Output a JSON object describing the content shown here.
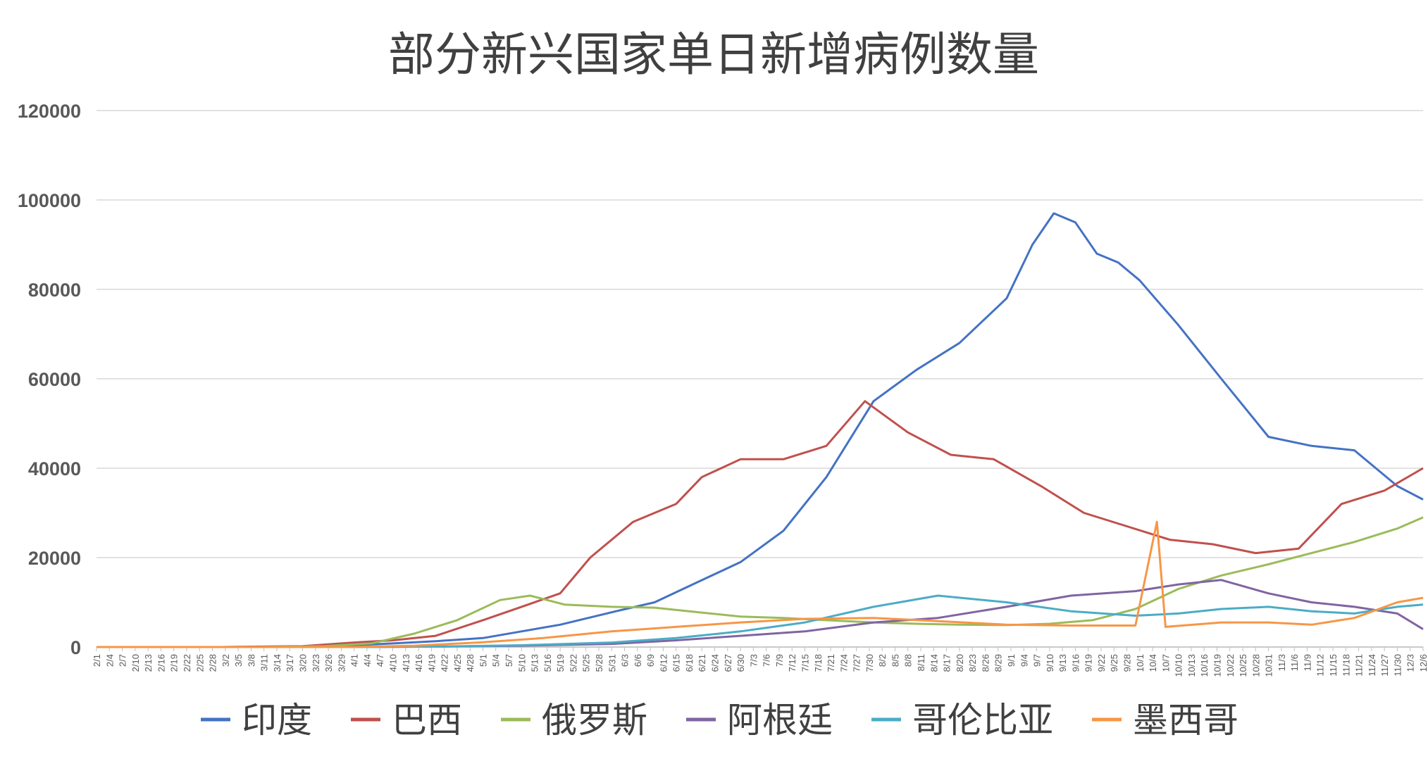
{
  "chart_data": {
    "type": "line",
    "title": "部分新兴国家单日新增病例数量",
    "xlabel": "",
    "ylabel": "",
    "ylim": [
      0,
      120000
    ],
    "yticks": [
      0,
      20000,
      40000,
      60000,
      80000,
      100000,
      120000
    ],
    "grid": true,
    "legend_position": "bottom",
    "x_start": "2/1",
    "x_end": "12/6",
    "x_tick_labels": [
      "2/1",
      "2/4",
      "2/7",
      "2/10",
      "2/13",
      "2/16",
      "2/19",
      "2/22",
      "2/25",
      "2/28",
      "3/2",
      "3/5",
      "3/8",
      "3/11",
      "3/14",
      "3/17",
      "3/20",
      "3/23",
      "3/26",
      "3/29",
      "4/1",
      "4/4",
      "4/7",
      "4/10",
      "4/13",
      "4/16",
      "4/19",
      "4/22",
      "4/25",
      "4/28",
      "5/1",
      "5/4",
      "5/7",
      "5/10",
      "5/13",
      "5/16",
      "5/19",
      "5/22",
      "5/25",
      "5/28",
      "5/31",
      "6/3",
      "6/6",
      "6/9",
      "6/12",
      "6/15",
      "6/18",
      "6/21",
      "6/24",
      "6/27",
      "6/30",
      "7/3",
      "7/6",
      "7/9",
      "7/12",
      "7/15",
      "7/18",
      "7/21",
      "7/24",
      "7/27",
      "7/30",
      "8/2",
      "8/5",
      "8/8",
      "8/11",
      "8/14",
      "8/17",
      "8/20",
      "8/23",
      "8/26",
      "8/29",
      "9/1",
      "9/4",
      "9/7",
      "9/10",
      "9/13",
      "9/16",
      "9/19",
      "9/22",
      "9/25",
      "9/28",
      "10/1",
      "10/4",
      "10/7",
      "10/10",
      "10/13",
      "10/16",
      "10/19",
      "10/22",
      "10/25",
      "10/28",
      "10/31",
      "11/3",
      "11/6",
      "11/9",
      "11/12",
      "11/15",
      "11/18",
      "11/21",
      "11/24",
      "11/27",
      "11/30",
      "12/3",
      "12/6"
    ],
    "series": [
      {
        "name": "印度",
        "color": "#4472C4",
        "points": [
          [
            "2/1",
            0
          ],
          [
            "3/1",
            0
          ],
          [
            "3/20",
            100
          ],
          [
            "4/1",
            400
          ],
          [
            "4/10",
            800
          ],
          [
            "4/20",
            1300
          ],
          [
            "5/1",
            2000
          ],
          [
            "5/10",
            3500
          ],
          [
            "5/19",
            5000
          ],
          [
            "6/1",
            8000
          ],
          [
            "6/10",
            10000
          ],
          [
            "6/20",
            14500
          ],
          [
            "6/30",
            19000
          ],
          [
            "7/10",
            26000
          ],
          [
            "7/20",
            38000
          ],
          [
            "7/31",
            55000
          ],
          [
            "8/10",
            62000
          ],
          [
            "8/20",
            68000
          ],
          [
            "8/31",
            78000
          ],
          [
            "9/6",
            90000
          ],
          [
            "9/11",
            97000
          ],
          [
            "9/16",
            95000
          ],
          [
            "9/21",
            88000
          ],
          [
            "9/26",
            86000
          ],
          [
            "10/1",
            82000
          ],
          [
            "10/10",
            72000
          ],
          [
            "10/20",
            60000
          ],
          [
            "10/31",
            47000
          ],
          [
            "11/10",
            45000
          ],
          [
            "11/20",
            44000
          ],
          [
            "11/30",
            36000
          ],
          [
            "12/6",
            33000
          ]
        ]
      },
      {
        "name": "巴西",
        "color": "#C0504D",
        "points": [
          [
            "2/1",
            0
          ],
          [
            "3/1",
            0
          ],
          [
            "3/20",
            200
          ],
          [
            "4/1",
            1000
          ],
          [
            "4/10",
            1500
          ],
          [
            "4/20",
            2500
          ],
          [
            "5/1",
            6000
          ],
          [
            "5/10",
            9000
          ],
          [
            "5/19",
            12000
          ],
          [
            "5/26",
            20000
          ],
          [
            "6/5",
            28000
          ],
          [
            "6/15",
            32000
          ],
          [
            "6/21",
            38000
          ],
          [
            "6/30",
            42000
          ],
          [
            "7/10",
            42000
          ],
          [
            "7/20",
            45000
          ],
          [
            "7/29",
            55000
          ],
          [
            "8/8",
            48000
          ],
          [
            "8/18",
            43000
          ],
          [
            "8/28",
            42000
          ],
          [
            "9/8",
            36000
          ],
          [
            "9/18",
            30000
          ],
          [
            "9/28",
            27000
          ],
          [
            "10/8",
            24000
          ],
          [
            "10/18",
            23000
          ],
          [
            "10/28",
            21000
          ],
          [
            "11/7",
            22000
          ],
          [
            "11/17",
            32000
          ],
          [
            "11/27",
            35000
          ],
          [
            "12/6",
            40000
          ]
        ]
      },
      {
        "name": "俄罗斯",
        "color": "#9BBB59",
        "points": [
          [
            "2/1",
            0
          ],
          [
            "3/10",
            0
          ],
          [
            "3/25",
            200
          ],
          [
            "4/5",
            800
          ],
          [
            "4/15",
            3000
          ],
          [
            "4/25",
            6000
          ],
          [
            "5/5",
            10500
          ],
          [
            "5/12",
            11500
          ],
          [
            "5/20",
            9500
          ],
          [
            "5/31",
            9000
          ],
          [
            "6/10",
            8800
          ],
          [
            "6/20",
            7800
          ],
          [
            "6/30",
            6800
          ],
          [
            "7/10",
            6500
          ],
          [
            "7/20",
            6000
          ],
          [
            "7/31",
            5500
          ],
          [
            "8/10",
            5200
          ],
          [
            "8/20",
            5000
          ],
          [
            "8/31",
            4900
          ],
          [
            "9/10",
            5200
          ],
          [
            "9/20",
            6000
          ],
          [
            "9/30",
            8500
          ],
          [
            "10/10",
            13000
          ],
          [
            "10/20",
            16000
          ],
          [
            "10/31",
            18500
          ],
          [
            "11/10",
            21000
          ],
          [
            "11/20",
            23500
          ],
          [
            "11/30",
            26500
          ],
          [
            "12/6",
            29000
          ]
        ]
      },
      {
        "name": "阿根廷",
        "color": "#8064A2",
        "points": [
          [
            "2/1",
            0
          ],
          [
            "4/1",
            0
          ],
          [
            "4/20",
            100
          ],
          [
            "5/10",
            300
          ],
          [
            "5/31",
            700
          ],
          [
            "6/15",
            1500
          ],
          [
            "6/30",
            2500
          ],
          [
            "7/15",
            3500
          ],
          [
            "7/31",
            5500
          ],
          [
            "8/15",
            6500
          ],
          [
            "8/31",
            9000
          ],
          [
            "9/15",
            11500
          ],
          [
            "9/30",
            12500
          ],
          [
            "10/10",
            14000
          ],
          [
            "10/20",
            15000
          ],
          [
            "10/31",
            12000
          ],
          [
            "11/10",
            10000
          ],
          [
            "11/20",
            9000
          ],
          [
            "11/30",
            7500
          ],
          [
            "12/6",
            4000
          ]
        ]
      },
      {
        "name": "哥伦比亚",
        "color": "#4BACC6",
        "points": [
          [
            "2/1",
            0
          ],
          [
            "4/1",
            0
          ],
          [
            "4/20",
            100
          ],
          [
            "5/10",
            400
          ],
          [
            "5/31",
            1000
          ],
          [
            "6/15",
            2000
          ],
          [
            "6/30",
            3500
          ],
          [
            "7/15",
            5500
          ],
          [
            "7/31",
            9000
          ],
          [
            "8/15",
            11500
          ],
          [
            "8/31",
            10000
          ],
          [
            "9/15",
            8000
          ],
          [
            "9/30",
            7000
          ],
          [
            "10/10",
            7500
          ],
          [
            "10/20",
            8500
          ],
          [
            "10/31",
            9000
          ],
          [
            "11/10",
            8000
          ],
          [
            "11/20",
            7500
          ],
          [
            "11/30",
            9000
          ],
          [
            "12/6",
            9500
          ]
        ]
      },
      {
        "name": "墨西哥",
        "color": "#F79646",
        "points": [
          [
            "2/1",
            0
          ],
          [
            "4/1",
            0
          ],
          [
            "4/15",
            300
          ],
          [
            "4/30",
            1000
          ],
          [
            "5/15",
            2000
          ],
          [
            "5/31",
            3500
          ],
          [
            "6/15",
            4500
          ],
          [
            "6/30",
            5500
          ],
          [
            "7/15",
            6300
          ],
          [
            "7/31",
            6500
          ],
          [
            "8/15",
            5800
          ],
          [
            "8/31",
            5000
          ],
          [
            "9/15",
            4800
          ],
          [
            "9/30",
            4800
          ],
          [
            "10/5",
            28000
          ],
          [
            "10/7",
            4500
          ],
          [
            "10/20",
            5500
          ],
          [
            "10/31",
            5500
          ],
          [
            "11/10",
            5000
          ],
          [
            "11/20",
            6500
          ],
          [
            "11/30",
            10000
          ],
          [
            "12/6",
            11000
          ]
        ]
      }
    ]
  }
}
